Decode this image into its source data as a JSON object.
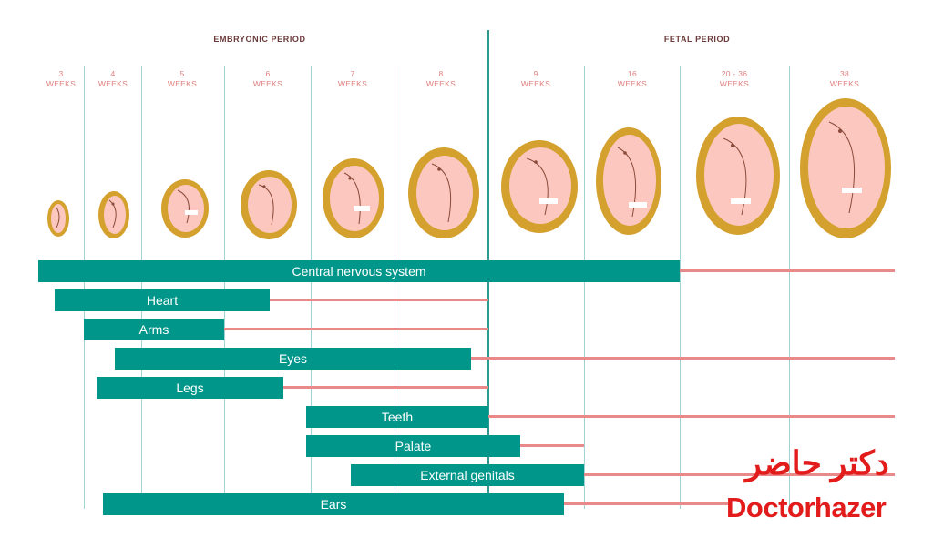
{
  "periods": {
    "embryonic": "EMBRYONIC PERIOD",
    "fetal": "FETAL PERIOD"
  },
  "week_unit": "WEEKS",
  "weeks": [
    "3",
    "4",
    "5",
    "6",
    "7",
    "8",
    "9",
    "16",
    "20 - 36",
    "38"
  ],
  "bars": [
    {
      "label": "Central nervous system"
    },
    {
      "label": "Heart"
    },
    {
      "label": "Arms"
    },
    {
      "label": "Eyes"
    },
    {
      "label": "Legs"
    },
    {
      "label": "Teeth"
    },
    {
      "label": "Palate"
    },
    {
      "label": "External genitals"
    },
    {
      "label": "Ears"
    }
  ],
  "branding": {
    "persian": "دکتر حاضر",
    "latin": "Doctorhazer"
  },
  "colors": {
    "critical": "#00968a",
    "less_sensitive": "#e9898a",
    "sac": "#d4a02e",
    "skin": "#fbc7bf",
    "brand": "#e21b1b"
  }
}
